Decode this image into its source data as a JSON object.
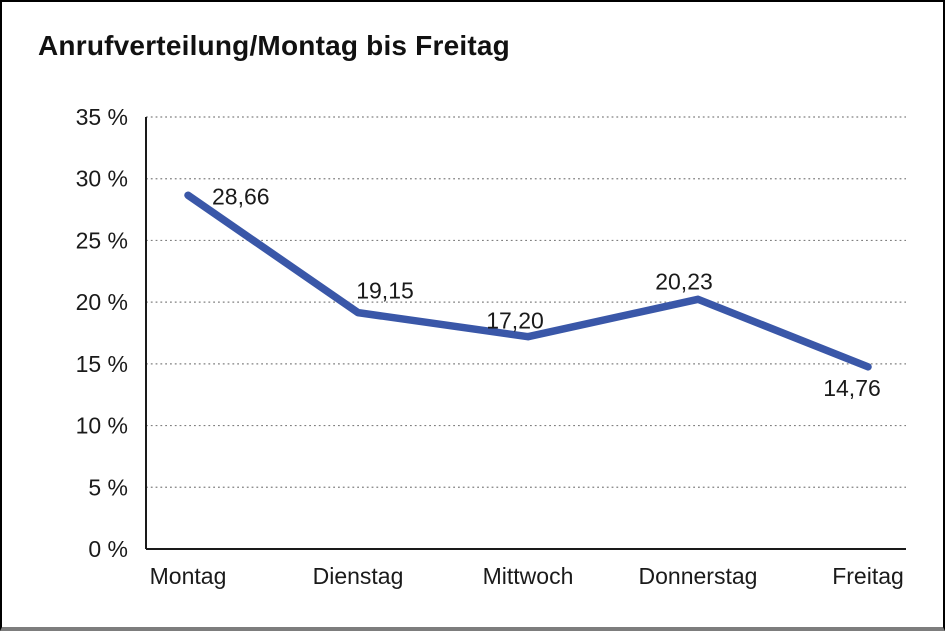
{
  "title": "Anrufverteilung/Montag bis Freitag",
  "chart_data": {
    "type": "line",
    "title": "Anrufverteilung/Montag bis Freitag",
    "categories": [
      "Montag",
      "Dienstag",
      "Mittwoch",
      "Donnerstag",
      "Freitag"
    ],
    "values": [
      28.66,
      19.15,
      17.2,
      20.23,
      14.76
    ],
    "data_labels": [
      "28,66",
      "19,15",
      "17,20",
      "20,23",
      "14,76"
    ],
    "series_name": "Anrufverteilung",
    "xlabel": "",
    "ylabel": "",
    "ylim": [
      0,
      35
    ],
    "ytick_step": 5,
    "ytick_labels": [
      "0 %",
      "5 %",
      "10 %",
      "15 %",
      "20 %",
      "25 %",
      "30 %",
      "35 %"
    ],
    "grid": "horizontal-dotted",
    "legend_position": "none",
    "line_color": "#3A57A8",
    "grid_color": "#808080",
    "axis_color": "#1a1a1a",
    "text_color": "#1a1a1a",
    "background_color": "#ffffff"
  }
}
